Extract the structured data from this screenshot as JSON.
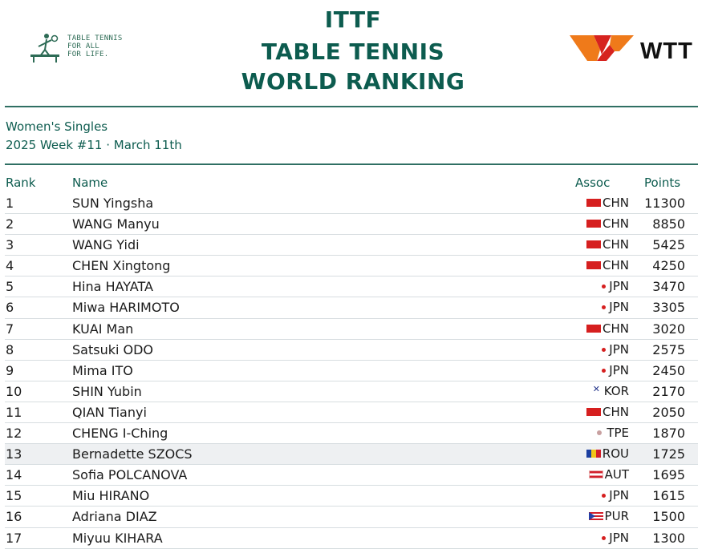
{
  "header": {
    "title_lines": [
      "ITTF",
      "TABLE TENNIS",
      "WORLD RANKING"
    ],
    "ittf_logo_lines": [
      "TABLE TENNIS",
      "FOR ALL",
      "FOR LIFE."
    ],
    "wtt_logo_text": "WTT"
  },
  "event": {
    "category": "Women's Singles",
    "week": "2025 Week #11 · March 11th"
  },
  "columns": {
    "rank": "Rank",
    "name": "Name",
    "assoc": "Assoc",
    "points": "Points"
  },
  "colors": {
    "brand_green": "#0d5c4f",
    "wtt_orange": "#ef7a1a",
    "wtt_red": "#d6231f"
  },
  "rankings": [
    {
      "rank": "1",
      "name": "SUN Yingsha",
      "flag": "chn",
      "assoc": "CHN",
      "points": "11300"
    },
    {
      "rank": "2",
      "name": "WANG Manyu",
      "flag": "chn",
      "assoc": "CHN",
      "points": "8850"
    },
    {
      "rank": "3",
      "name": "WANG Yidi",
      "flag": "chn",
      "assoc": "CHN",
      "points": "5425"
    },
    {
      "rank": "4",
      "name": "CHEN Xingtong",
      "flag": "chn",
      "assoc": "CHN",
      "points": "4250"
    },
    {
      "rank": "5",
      "name": "Hina HAYATA",
      "flag": "jpn",
      "assoc": "JPN",
      "points": "3470"
    },
    {
      "rank": "6",
      "name": "Miwa HARIMOTO",
      "flag": "jpn",
      "assoc": "JPN",
      "points": "3305"
    },
    {
      "rank": "7",
      "name": "KUAI Man",
      "flag": "chn",
      "assoc": "CHN",
      "points": "3020"
    },
    {
      "rank": "8",
      "name": "Satsuki ODO",
      "flag": "jpn",
      "assoc": "JPN",
      "points": "2575"
    },
    {
      "rank": "9",
      "name": "Mima ITO",
      "flag": "jpn",
      "assoc": "JPN",
      "points": "2450"
    },
    {
      "rank": "10",
      "name": "SHIN Yubin",
      "flag": "kor",
      "assoc": "KOR",
      "points": "2170"
    },
    {
      "rank": "11",
      "name": "QIAN Tianyi",
      "flag": "chn",
      "assoc": "CHN",
      "points": "2050"
    },
    {
      "rank": "12",
      "name": "CHENG I-Ching",
      "flag": "tpe",
      "assoc": "TPE",
      "points": "1870"
    },
    {
      "rank": "13",
      "name": "Bernadette SZOCS",
      "flag": "rou",
      "assoc": "ROU",
      "points": "1725",
      "highlight": true
    },
    {
      "rank": "14",
      "name": "Sofia POLCANOVA",
      "flag": "aut",
      "assoc": "AUT",
      "points": "1695"
    },
    {
      "rank": "15",
      "name": "Miu HIRANO",
      "flag": "jpn",
      "assoc": "JPN",
      "points": "1615"
    },
    {
      "rank": "16",
      "name": "Adriana DIAZ",
      "flag": "pur",
      "assoc": "PUR",
      "points": "1500"
    },
    {
      "rank": "17",
      "name": "Miyuu KIHARA",
      "flag": "jpn",
      "assoc": "JPN",
      "points": "1300"
    }
  ]
}
